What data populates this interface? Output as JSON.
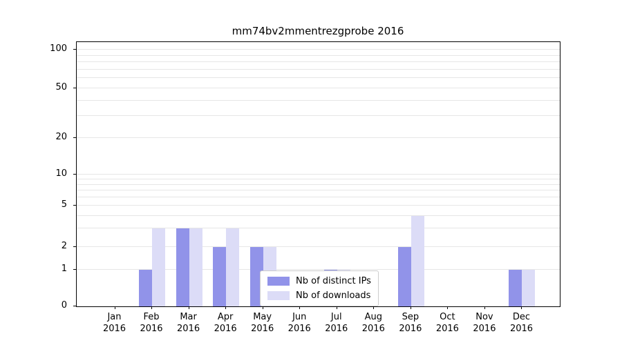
{
  "page": {
    "background": "#ffffff"
  },
  "chart_data": {
    "type": "bar",
    "title": "mm74bv2mmentrezgprobe 2016",
    "categories": [
      "Jan",
      "Feb",
      "Mar",
      "Apr",
      "May",
      "Jun",
      "Jul",
      "Aug",
      "Sep",
      "Oct",
      "Nov",
      "Dec"
    ],
    "category_year": "2016",
    "series": [
      {
        "name": "Nb of distinct IPs",
        "color": "#9193e9",
        "values": [
          0,
          1,
          3,
          2,
          2,
          0,
          1,
          0,
          2,
          0,
          0,
          1
        ]
      },
      {
        "name": "Nb of downloads",
        "color": "#dcdcf7",
        "values": [
          0,
          3,
          3,
          3,
          2,
          0,
          1,
          0,
          4,
          0,
          0,
          1
        ]
      }
    ],
    "y_axis": {
      "scale": "symlog-like",
      "ticks": [
        0,
        1,
        2,
        5,
        10,
        20,
        50,
        100
      ],
      "minor_gridlines": [
        3,
        4,
        6,
        7,
        8,
        9,
        30,
        40,
        60,
        70,
        80,
        90
      ]
    },
    "legend": {
      "position": "lower center"
    },
    "grid": true,
    "xlabel": "",
    "ylabel": ""
  }
}
